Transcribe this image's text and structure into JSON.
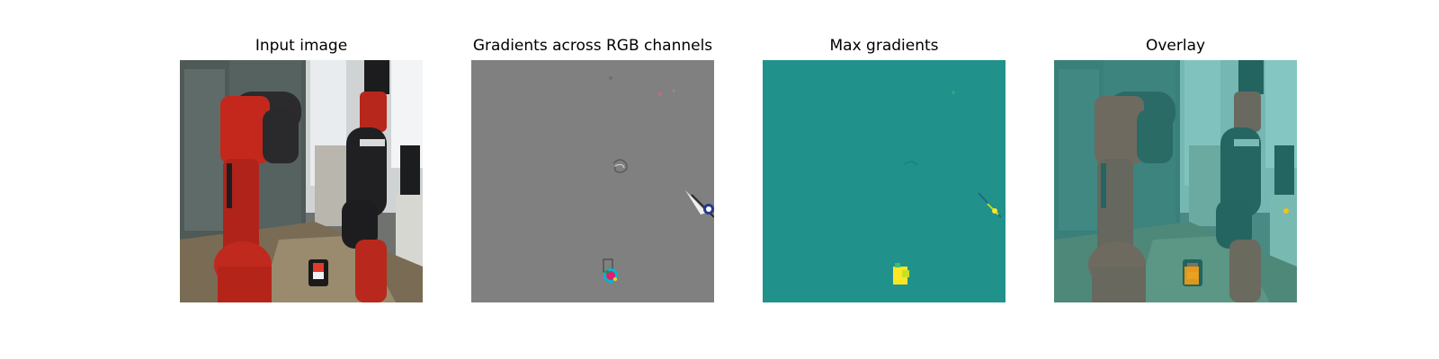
{
  "figure": {
    "panels": [
      {
        "title": "Input image"
      },
      {
        "title": "Gradients across RGB channels"
      },
      {
        "title": "Max gradients"
      },
      {
        "title": "Overlay"
      }
    ]
  },
  "colors": {
    "page_background": "#ffffff",
    "gradients_background": "#808080",
    "max_gradients_background": "#21918c",
    "max_gradients_highlight": "#fde725",
    "overlay_tint": "#5fb6b0"
  }
}
